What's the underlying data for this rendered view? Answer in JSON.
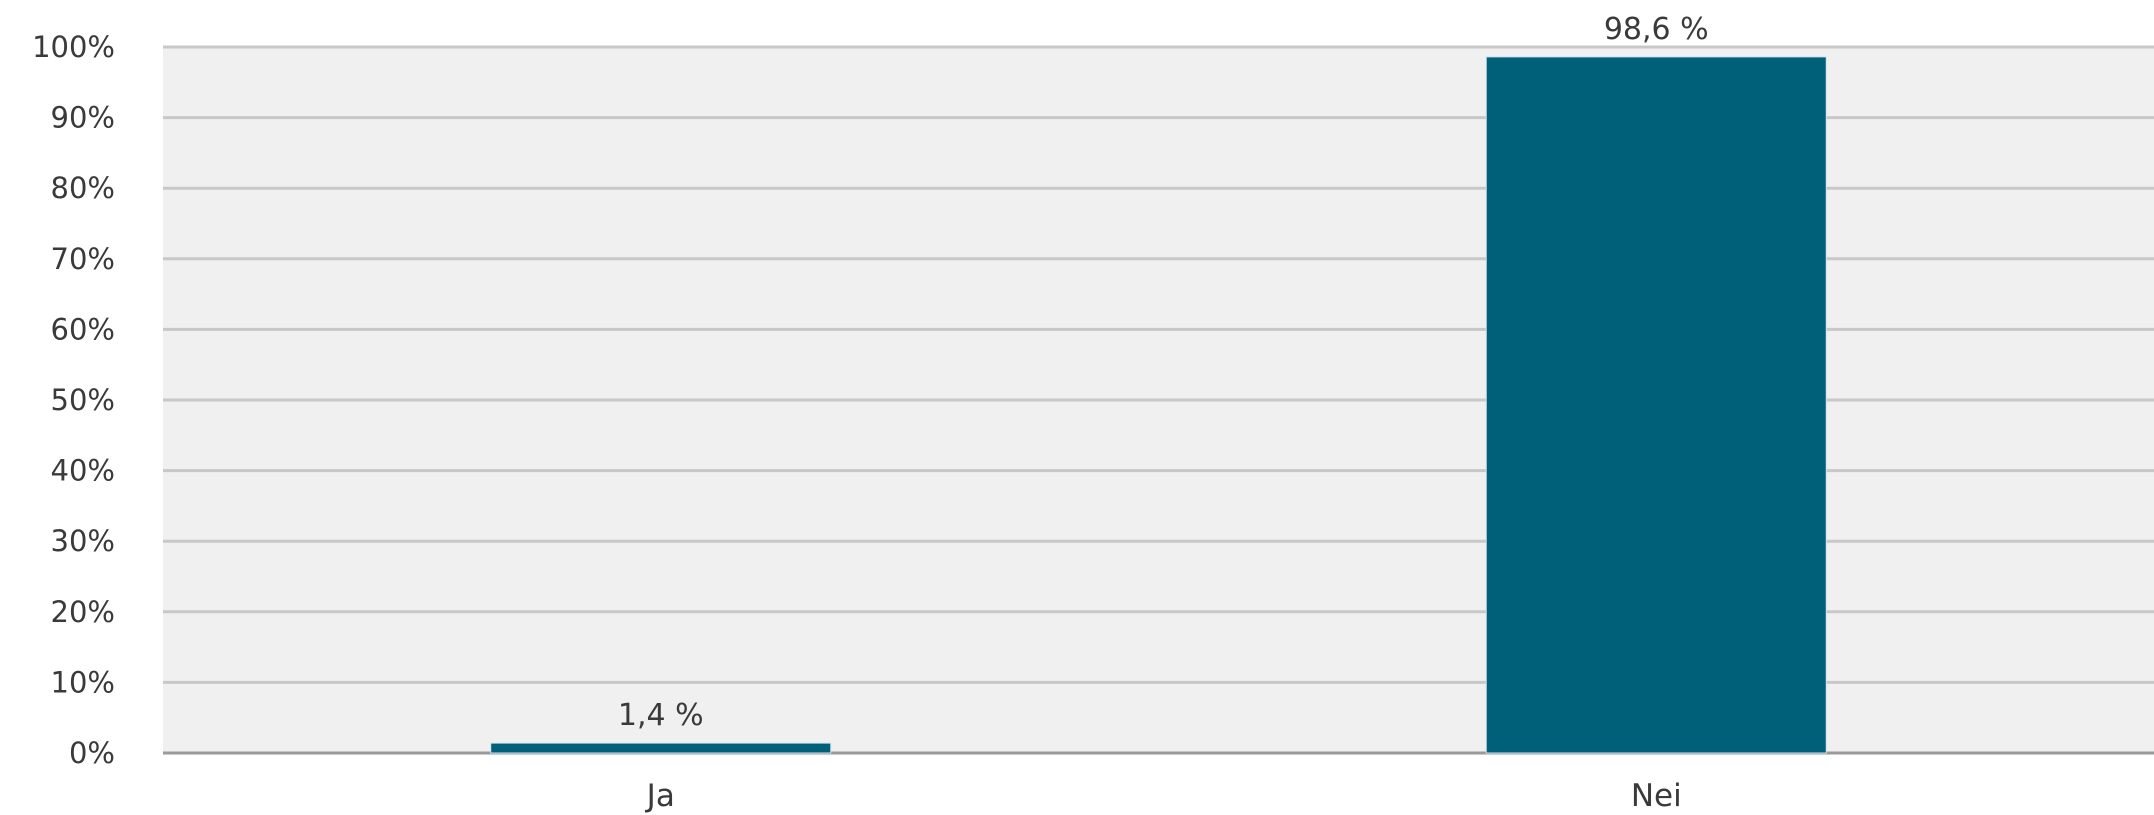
{
  "chart_data": {
    "type": "bar",
    "categories": [
      "Ja",
      "Nei"
    ],
    "values": [
      1.4,
      98.6
    ],
    "data_labels": [
      "1,4 %",
      "98,6 %"
    ],
    "yticks": [
      {
        "value": 0,
        "label": "0%"
      },
      {
        "value": 10,
        "label": "10%"
      },
      {
        "value": 20,
        "label": "20%"
      },
      {
        "value": 30,
        "label": "30%"
      },
      {
        "value": 40,
        "label": "40%"
      },
      {
        "value": 50,
        "label": "50%"
      },
      {
        "value": 60,
        "label": "60%"
      },
      {
        "value": 70,
        "label": "70%"
      },
      {
        "value": 80,
        "label": "80%"
      },
      {
        "value": 90,
        "label": "90%"
      },
      {
        "value": 100,
        "label": "100%"
      }
    ],
    "ylim": [
      0,
      100
    ],
    "grid": true,
    "legend": "none",
    "colors": {
      "bar": "#00607a",
      "plot_background": "#f0f0f0",
      "gridline": "#c8c8c8"
    }
  }
}
